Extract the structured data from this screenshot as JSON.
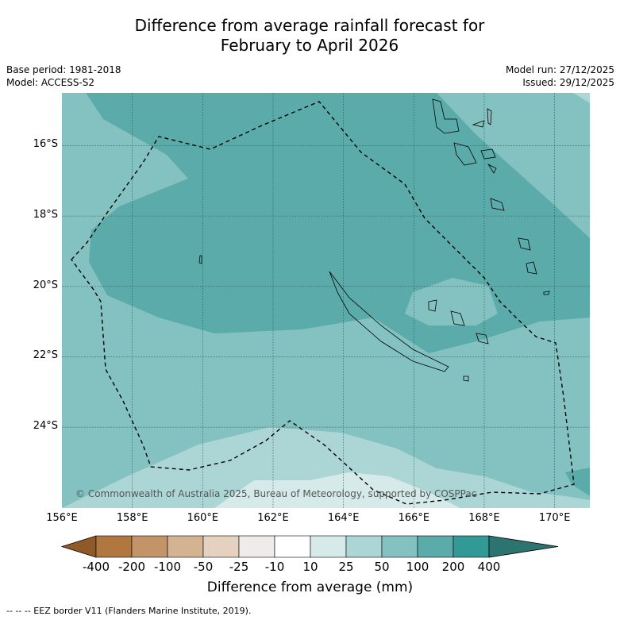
{
  "chart_data": {
    "type": "heatmap",
    "title": [
      "Difference from average rainfall forecast for",
      "February to April 2026"
    ],
    "meta_left": [
      "Base period: 1981-2018",
      "Model: ACCESS-S2"
    ],
    "meta_right": [
      "Model run: 27/12/2025",
      "Issued: 29/12/2025"
    ],
    "x_ticks": [
      "156°E",
      "158°E",
      "160°E",
      "162°E",
      "164°E",
      "166°E",
      "168°E",
      "170°E"
    ],
    "y_ticks": [
      "16°S",
      "18°S",
      "20°S",
      "22°S",
      "24°S"
    ],
    "xlim": [
      156,
      171
    ],
    "ylim": [
      -26.3,
      -14.5
    ],
    "colorbar": {
      "label": "Difference from average (mm)",
      "ticks": [
        "-400",
        "-200",
        "-100",
        "-50",
        "-25",
        "-10",
        "10",
        "25",
        "50",
        "100",
        "200",
        "400"
      ],
      "colors": [
        "#8f5a27",
        "#b07840",
        "#c29468",
        "#d4b393",
        "#e5d1c0",
        "#efebe8",
        "#ffffff",
        "#d6eae9",
        "#acd6d5",
        "#84c2c1",
        "#5aabaa",
        "#339996",
        "#2c7470"
      ]
    },
    "regions": [
      {
        "category": "50 to 100",
        "color": "#84c2c1"
      },
      {
        "category": "100 to 200",
        "color": "#5aabaa"
      },
      {
        "category": "25 to 50",
        "color": "#acd6d5"
      },
      {
        "category": "10 to 25",
        "color": "#d6eae9"
      }
    ],
    "copyright": "© Commonwealth of Australia 2025, Bureau of Meteorology, supported by COSPPac",
    "footer": "--  --  -- EEZ border V11 (Flanders Marine Institute, 2019)."
  }
}
